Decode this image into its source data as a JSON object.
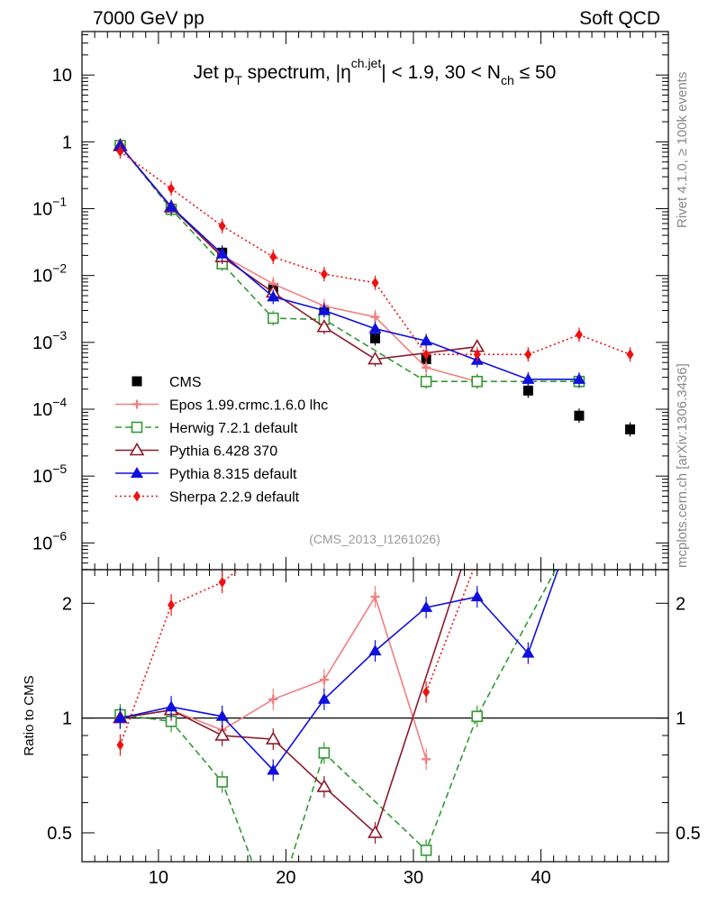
{
  "header": {
    "left": "7000 GeV pp",
    "right": "Soft QCD"
  },
  "side": {
    "rivet": "Rivet 4.1.0, ≥ 100k events",
    "mcplots": "mcplots.cern.ch [arXiv:1306.3436]"
  },
  "chart_data": [
    {
      "type": "scatter",
      "panel": "main",
      "title_parts": {
        "a": "Jet p",
        "a_sub": "T",
        "b": " spectrum, |η",
        "b_sup": "ch.jet",
        "c": "| < 1.9, 30 < N",
        "c_sub": "ch",
        "d": " ≤ 50"
      },
      "analysis_label": "(CMS_2013_I1261026)",
      "yscale": "log",
      "xlim": [
        4,
        50
      ],
      "ylim_exp": [
        -6.4,
        1.65
      ],
      "y_ticks": [
        {
          "exp": 1,
          "label": "10",
          "sup": ""
        },
        {
          "exp": 0,
          "label": "1",
          "sup": ""
        },
        {
          "exp": -1,
          "label": "10",
          "sup": "−1"
        },
        {
          "exp": -2,
          "label": "10",
          "sup": "−2"
        },
        {
          "exp": -3,
          "label": "10",
          "sup": "−3"
        },
        {
          "exp": -4,
          "label": "10",
          "sup": "−4"
        },
        {
          "exp": -5,
          "label": "10",
          "sup": "−5"
        },
        {
          "exp": -6,
          "label": "10",
          "sup": "−6"
        }
      ],
      "series": [
        {
          "name": "CMS",
          "color": "#000000",
          "marker": "filled-square",
          "dash": "none",
          "x": [
            7,
            11,
            15,
            19,
            23,
            27,
            31,
            35,
            39,
            43,
            47
          ],
          "y": [
            0.87,
            0.1,
            0.022,
            0.0065,
            0.0028,
            0.00115,
            0.00056,
            0.00026,
            0.00019,
            8e-05,
            5e-05
          ]
        },
        {
          "name": "Epos 1.99.crmc.1.6.0 lhc",
          "color": "#f08080",
          "marker": "open-cross",
          "dash": "solid",
          "x": [
            7,
            11,
            15,
            19,
            23,
            27,
            31,
            35
          ],
          "y": [
            0.86,
            0.105,
            0.02,
            0.0075,
            0.0035,
            0.0024,
            0.00042,
            0.00026
          ]
        },
        {
          "name": "Herwig 7.2.1 default",
          "color": "#339933",
          "marker": "open-square",
          "dash": "dashed",
          "x": [
            7,
            11,
            15,
            19,
            23,
            31,
            35,
            43
          ],
          "y": [
            0.88,
            0.098,
            0.015,
            0.0023,
            0.0022,
            0.00026,
            0.00026,
            0.00026
          ]
        },
        {
          "name": "Pythia 6.428 370",
          "color": "#8b1a2b",
          "marker": "open-triangle",
          "dash": "solid",
          "x": [
            7,
            11,
            15,
            19,
            23,
            27,
            35
          ],
          "y": [
            0.87,
            0.105,
            0.019,
            0.0056,
            0.0017,
            0.00056,
            0.00086
          ]
        },
        {
          "name": "Pythia 8.315 default",
          "color": "#1010dd",
          "marker": "filled-triangle",
          "dash": "solid",
          "x": [
            7,
            11,
            15,
            19,
            23,
            27,
            31,
            35,
            39,
            43
          ],
          "y": [
            0.87,
            0.107,
            0.021,
            0.0048,
            0.003,
            0.0016,
            0.00105,
            0.00054,
            0.00028,
            0.00028
          ]
        },
        {
          "name": "Sherpa 2.2.9 default",
          "color": "#ee1111",
          "marker": "filled-diamond",
          "dash": "dotted",
          "x": [
            7,
            11,
            15,
            19,
            23,
            27,
            31,
            35,
            39,
            43,
            47
          ],
          "y": [
            0.72,
            0.2,
            0.055,
            0.019,
            0.0105,
            0.0078,
            0.00066,
            0.00066,
            0.00066,
            0.0013,
            0.00066
          ]
        }
      ]
    },
    {
      "type": "line",
      "panel": "ratio",
      "ylabel": "Ratio to CMS",
      "xlabel": "",
      "yscale": "log",
      "xlim": [
        4,
        50
      ],
      "ylim": [
        0.42,
        2.45
      ],
      "x_ticks": [
        10,
        20,
        30,
        40
      ],
      "y_ticks": [
        0.5,
        1,
        2
      ],
      "series": [
        {
          "name": "Epos 1.99.crmc.1.6.0 lhc",
          "x": [
            7,
            11,
            15,
            19,
            23,
            27,
            31
          ],
          "y": [
            1.0,
            1.05,
            0.93,
            1.12,
            1.26,
            2.08,
            0.78
          ]
        },
        {
          "name": "Herwig 7.2.1 default",
          "x": [
            7,
            11,
            15,
            19,
            23,
            31,
            35,
            43
          ],
          "y": [
            1.02,
            0.98,
            0.68,
            0.3,
            0.81,
            0.45,
            1.01,
            3.2
          ]
        },
        {
          "name": "Pythia 6.428 370",
          "x": [
            7,
            11,
            15,
            19,
            23,
            27,
            35
          ],
          "y": [
            1.0,
            1.05,
            0.9,
            0.88,
            0.66,
            0.5,
            3.3
          ]
        },
        {
          "name": "Pythia 8.315 default",
          "x": [
            7,
            11,
            15,
            19,
            23,
            27,
            31,
            35,
            39,
            43
          ],
          "y": [
            1.0,
            1.07,
            1.01,
            0.73,
            1.12,
            1.5,
            1.95,
            2.08,
            1.48,
            3.5
          ]
        },
        {
          "name": "Sherpa 2.2.9 default",
          "x": [
            7,
            11,
            15,
            19
          ],
          "y": [
            0.85,
            1.98,
            2.27,
            2.9
          ]
        },
        {
          "name": "Sherpa 2.2.9 default",
          "x": [
            31,
            35
          ],
          "y": [
            1.17,
            2.6
          ]
        }
      ]
    }
  ]
}
